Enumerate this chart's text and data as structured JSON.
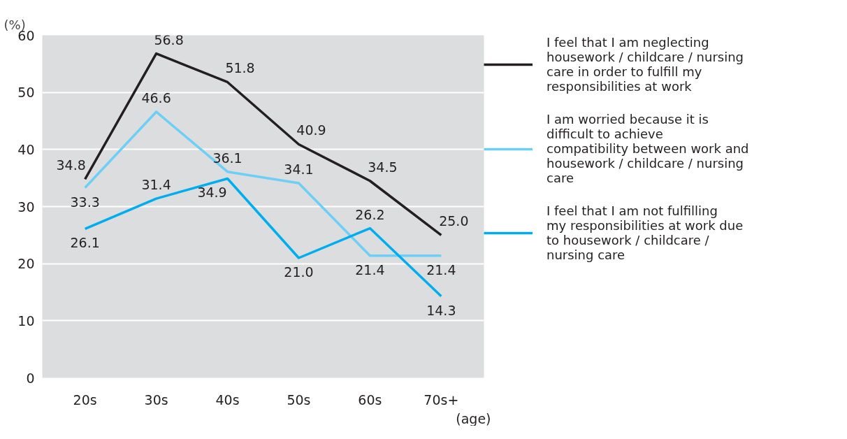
{
  "chart_data": {
    "type": "line",
    "ylabel": "(%)",
    "xlabel": "(age)",
    "categories": [
      "20s",
      "30s",
      "40s",
      "50s",
      "60s",
      "70s+"
    ],
    "series": [
      {
        "name": "I feel that I am neglecting housework / childcare / nursing care in order to fulfill my responsibilities at work",
        "color": "#231f20",
        "values": [
          34.8,
          56.8,
          51.8,
          40.9,
          34.5,
          25.0
        ],
        "value_labels": [
          "34.8",
          "56.8",
          "51.8",
          "40.9",
          "34.5",
          "25.0"
        ]
      },
      {
        "name": "I am worried because it is difficult to achieve compatibility between work and housework / childcare / nursing care",
        "color": "#6dcff6",
        "values": [
          33.3,
          46.6,
          36.1,
          34.1,
          21.4,
          21.4
        ],
        "value_labels": [
          "33.3",
          "46.6",
          "36.1",
          "34.1",
          "21.4",
          "21.4"
        ]
      },
      {
        "name": "I feel that I am not fulfilling my responsibilities at work due to housework / childcare / nursing care",
        "color": "#00aeef",
        "values": [
          26.1,
          31.4,
          34.9,
          21.0,
          26.2,
          14.3
        ],
        "value_labels": [
          "26.1",
          "31.4",
          "34.9",
          "21.0",
          "26.2",
          "14.3"
        ]
      }
    ],
    "ylim": [
      0,
      60
    ],
    "yticks": [
      0,
      10,
      20,
      30,
      40,
      50,
      60
    ],
    "grid": "y",
    "legend": "right",
    "marker": "none",
    "line_style": "solid"
  }
}
